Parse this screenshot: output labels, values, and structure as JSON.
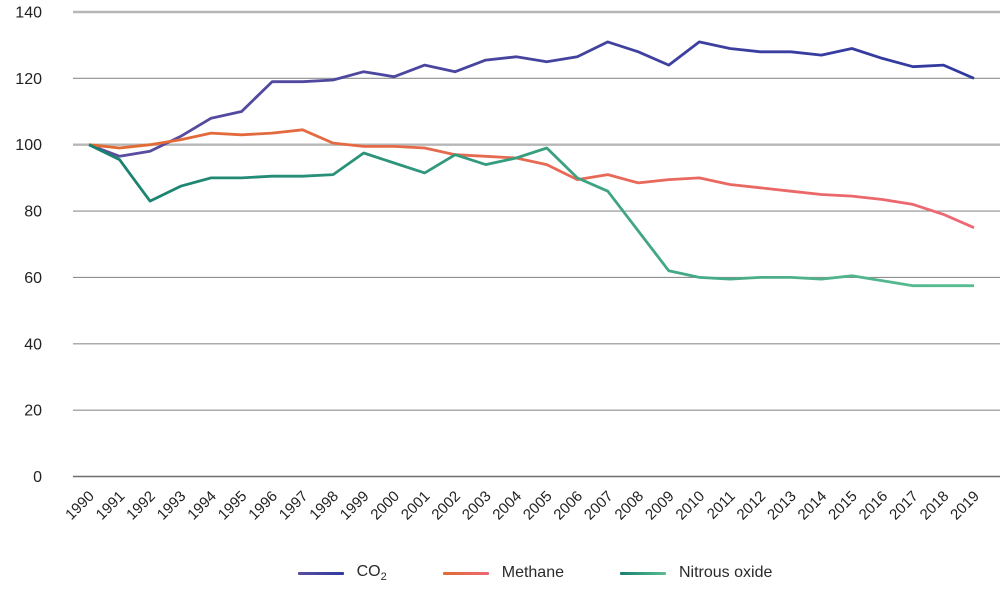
{
  "chart_data": {
    "type": "line",
    "title": "",
    "xlabel": "",
    "ylabel": "",
    "x": [
      1990,
      1991,
      1992,
      1993,
      1994,
      1995,
      1996,
      1997,
      1998,
      1999,
      2000,
      2001,
      2002,
      2003,
      2004,
      2005,
      2006,
      2007,
      2008,
      2009,
      2010,
      2011,
      2012,
      2013,
      2014,
      2015,
      2016,
      2017,
      2018,
      2019
    ],
    "series": [
      {
        "name": "CO2",
        "color_start": "#5a4e9e",
        "color_end": "#3039a0",
        "values": [
          100,
          96.5,
          98,
          102.5,
          108,
          110,
          119,
          119,
          119.5,
          122,
          120.5,
          124,
          122,
          125.5,
          126.5,
          125,
          126.5,
          131,
          128,
          124,
          131,
          129,
          128,
          128,
          127,
          129,
          126,
          123.5,
          124,
          120
        ]
      },
      {
        "name": "Methane",
        "color_start": "#e16b31",
        "color_end": "#ec6875",
        "values": [
          100,
          99,
          100,
          101.5,
          103.5,
          103,
          103.5,
          104.5,
          100.5,
          99.5,
          99.5,
          99,
          97,
          96.5,
          96,
          94,
          89.5,
          91,
          88.5,
          89.5,
          90,
          88,
          87,
          86,
          85,
          84.5,
          83.5,
          82,
          79,
          75
        ]
      },
      {
        "name": "Nitrous oxide",
        "color_start": "#17806f",
        "color_end": "#5abd91",
        "values": [
          100,
          95.5,
          83,
          87.5,
          90,
          90,
          90.5,
          90.5,
          91,
          97.5,
          94.5,
          91.5,
          97,
          94,
          96,
          99,
          90,
          86,
          74,
          62,
          60,
          59.5,
          60,
          60,
          59.5,
          60.5,
          59,
          57.5,
          57.5,
          57.5
        ]
      }
    ],
    "ylim": [
      0,
      140
    ],
    "yticks": [
      0,
      20,
      40,
      60,
      80,
      100,
      120,
      140
    ],
    "emphasized_gridlines": [
      100,
      140
    ],
    "grid": true,
    "legend_position": "bottom"
  },
  "legend": {
    "co2_main": "CO",
    "co2_sub": "2",
    "methane_label": "Methane",
    "nitrous_label": "Nitrous oxide"
  },
  "colors": {
    "grid_thin": "#8f8f8f",
    "grid_thick": "#b7b7b7",
    "axis_line": "#6e6e6e",
    "tick_text": "#222222"
  }
}
